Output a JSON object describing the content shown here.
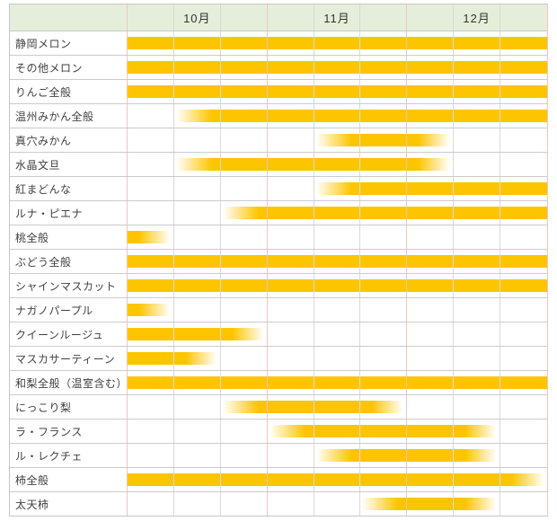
{
  "chart_data": {
    "type": "table",
    "title": "",
    "months": [
      "10月",
      "11月",
      "12月"
    ],
    "sub_columns_per_month": 3,
    "cell_states": {
      "solid": "full bar",
      "in": "fade-in start of season",
      "out": "fade-out end of season",
      "": "empty"
    },
    "rows": [
      {
        "name": "静岡メロン",
        "cells": [
          "solid",
          "solid",
          "solid",
          "solid",
          "solid",
          "solid",
          "solid",
          "solid",
          "solid"
        ]
      },
      {
        "name": "その他メロン",
        "cells": [
          "solid",
          "solid",
          "solid",
          "solid",
          "solid",
          "solid",
          "solid",
          "solid",
          "solid"
        ]
      },
      {
        "name": "りんご全般",
        "cells": [
          "solid",
          "solid",
          "solid",
          "solid",
          "solid",
          "solid",
          "solid",
          "solid",
          "solid"
        ]
      },
      {
        "name": "温州みかん全般",
        "cells": [
          "",
          "in",
          "solid",
          "solid",
          "solid",
          "solid",
          "solid",
          "solid",
          "solid"
        ]
      },
      {
        "name": "真穴みかん",
        "cells": [
          "",
          "",
          "",
          "",
          "in",
          "solid",
          "out",
          "",
          ""
        ]
      },
      {
        "name": "水晶文旦",
        "cells": [
          "",
          "in",
          "solid",
          "solid",
          "solid",
          "solid",
          "out",
          "",
          ""
        ]
      },
      {
        "name": "紅まどんな",
        "cells": [
          "",
          "",
          "",
          "",
          "in",
          "solid",
          "solid",
          "solid",
          "solid"
        ]
      },
      {
        "name": "ルナ・ピエナ",
        "cells": [
          "",
          "",
          "in",
          "solid",
          "solid",
          "solid",
          "solid",
          "solid",
          "solid"
        ]
      },
      {
        "name": "桃全般",
        "cells": [
          "out",
          "",
          "",
          "",
          "",
          "",
          "",
          "",
          ""
        ]
      },
      {
        "name": "ぶどう全般",
        "cells": [
          "solid",
          "solid",
          "solid",
          "solid",
          "solid",
          "solid",
          "solid",
          "solid",
          "solid"
        ]
      },
      {
        "name": "シャインマスカット",
        "cells": [
          "solid",
          "solid",
          "solid",
          "solid",
          "solid",
          "solid",
          "solid",
          "solid",
          "solid"
        ]
      },
      {
        "name": "ナガノパープル",
        "cells": [
          "out",
          "",
          "",
          "",
          "",
          "",
          "",
          "",
          ""
        ]
      },
      {
        "name": "クイーンルージュ",
        "cells": [
          "solid",
          "solid",
          "out",
          "",
          "",
          "",
          "",
          "",
          ""
        ]
      },
      {
        "name": "マスカサーティーン",
        "cells": [
          "solid",
          "out",
          "",
          "",
          "",
          "",
          "",
          "",
          ""
        ]
      },
      {
        "name": "和梨全般（温室含む）",
        "cells": [
          "solid",
          "solid",
          "solid",
          "solid",
          "solid",
          "solid",
          "solid",
          "solid",
          "solid"
        ]
      },
      {
        "name": "にっこり梨",
        "cells": [
          "",
          "",
          "in",
          "solid",
          "solid",
          "out",
          "",
          "",
          ""
        ]
      },
      {
        "name": "ラ・フランス",
        "cells": [
          "",
          "",
          "",
          "in",
          "solid",
          "solid",
          "solid",
          "out",
          ""
        ]
      },
      {
        "name": "ル・レクチェ",
        "cells": [
          "",
          "",
          "",
          "",
          "in",
          "solid",
          "solid",
          "out",
          ""
        ]
      },
      {
        "name": "柿全般",
        "cells": [
          "solid",
          "solid",
          "solid",
          "solid",
          "solid",
          "solid",
          "solid",
          "solid",
          "out"
        ]
      },
      {
        "name": "太天柿",
        "cells": [
          "",
          "",
          "",
          "",
          "",
          "in",
          "solid",
          "out",
          ""
        ]
      }
    ]
  },
  "colors": {
    "bar": "#fdc500",
    "header_bg": "#e5eeda",
    "month_boundary_line": "#f5c3c3",
    "grid_line_horizontal": "#cbcbcb",
    "grid_line_vertical": "#dadada",
    "outer_border": "#c6c6c6",
    "text": "#414141"
  }
}
